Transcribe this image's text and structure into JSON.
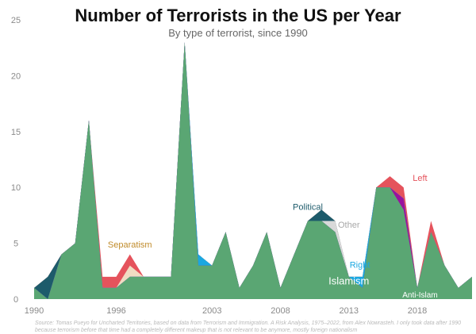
{
  "title": "Number of Terrorists in the US per Year",
  "subtitle": "By type of terrorist, since 1990",
  "source": "Source: Tomas Pueyo for Uncharted Territories, based on data from Terrorism and Immigration. A Risk Analysis, 1975–2022, from Alex Nowrasteh. I only took data after 1990 because terrorism before that time had a completely different makeup that is not relevant to be anymore, mostly foreign nationalism",
  "chart_data": {
    "type": "area",
    "stacked": true,
    "title": "Number of Terrorists in the US per Year",
    "subtitle": "By type of terrorist, since 1990",
    "xlim": [
      1990,
      2022
    ],
    "ylim": [
      0,
      25
    ],
    "x_ticks": [
      1990,
      1996,
      2003,
      2008,
      2013,
      2018
    ],
    "y_ticks": [
      0,
      5,
      10,
      15,
      20,
      25
    ],
    "grid": false,
    "legend": "inline labels",
    "x": [
      1990,
      1991,
      1992,
      1993,
      1994,
      1995,
      1996,
      1997,
      1998,
      1999,
      2000,
      2001,
      2002,
      2003,
      2004,
      2005,
      2006,
      2007,
      2008,
      2009,
      2010,
      2011,
      2012,
      2013,
      2014,
      2015,
      2016,
      2017,
      2018,
      2019,
      2020,
      2021,
      2022
    ],
    "series": [
      {
        "name": "Islamism",
        "color": "#5aa673",
        "values": [
          1,
          0,
          4,
          5,
          16,
          1,
          1,
          2,
          2,
          2,
          2,
          23,
          3,
          3,
          6,
          1,
          3,
          6,
          1,
          4,
          7,
          7,
          6,
          2,
          1,
          10,
          10,
          8,
          1,
          6,
          3,
          1,
          2
        ]
      },
      {
        "name": "Anti-Islam",
        "color": "#99139e",
        "values": [
          0,
          0,
          0,
          0,
          0,
          0,
          0,
          0,
          0,
          0,
          0,
          0,
          0,
          0,
          0,
          0,
          0,
          0,
          0,
          0,
          0,
          0,
          0,
          0,
          0,
          0,
          0,
          1,
          0,
          0,
          0,
          0,
          0
        ]
      },
      {
        "name": "Right",
        "color": "#1aa7e0",
        "values": [
          0,
          0,
          0,
          0,
          0,
          0,
          0,
          0,
          0,
          0,
          0,
          0,
          1,
          0,
          0,
          0,
          0,
          0,
          0,
          0,
          0,
          0,
          0,
          0,
          1,
          0,
          0,
          0,
          0,
          0,
          0,
          0,
          0
        ]
      },
      {
        "name": "Other",
        "color": "#d9d9d9",
        "values": [
          0,
          0,
          0,
          0,
          0,
          0,
          0,
          0,
          0,
          0,
          0,
          0,
          0,
          0,
          0,
          0,
          0,
          0,
          0,
          0,
          0,
          0,
          1,
          0,
          0,
          0,
          0,
          0,
          0,
          0,
          0,
          0,
          0
        ]
      },
      {
        "name": "Political",
        "color": "#1d5b6b",
        "values": [
          0,
          2,
          0,
          0,
          0,
          0,
          0,
          0,
          0,
          0,
          0,
          0,
          0,
          0,
          0,
          0,
          0,
          0,
          0,
          0,
          0,
          1,
          0,
          0,
          0,
          0,
          0,
          0,
          0,
          0,
          0,
          0,
          0
        ]
      },
      {
        "name": "Separatism",
        "color": "#f0dcc2",
        "values": [
          0,
          0,
          0,
          0,
          0,
          0,
          0,
          1,
          0,
          0,
          0,
          0,
          0,
          0,
          0,
          0,
          0,
          0,
          0,
          0,
          0,
          0,
          0,
          0,
          0,
          0,
          0,
          0,
          0,
          0,
          0,
          0,
          0
        ]
      },
      {
        "name": "Left",
        "color": "#e5535c",
        "values": [
          0,
          0,
          0,
          0,
          0,
          1,
          1,
          1,
          0,
          0,
          0,
          0,
          0,
          0,
          0,
          0,
          0,
          0,
          0,
          0,
          0,
          0,
          0,
          0,
          0,
          0,
          1,
          1,
          0,
          1,
          0,
          0,
          0
        ]
      }
    ],
    "colors": {
      "axis_text": "#8a8a8a",
      "Islamism_label": "#ffffff",
      "Separatism_label": "#c08b2b",
      "Political_label": "#1d5b6b",
      "Other_label": "#a8a8a8",
      "Right_label": "#1aa7e0",
      "Left_label": "#e5535c",
      "Anti-Islam_label": "#ffffff"
    }
  }
}
